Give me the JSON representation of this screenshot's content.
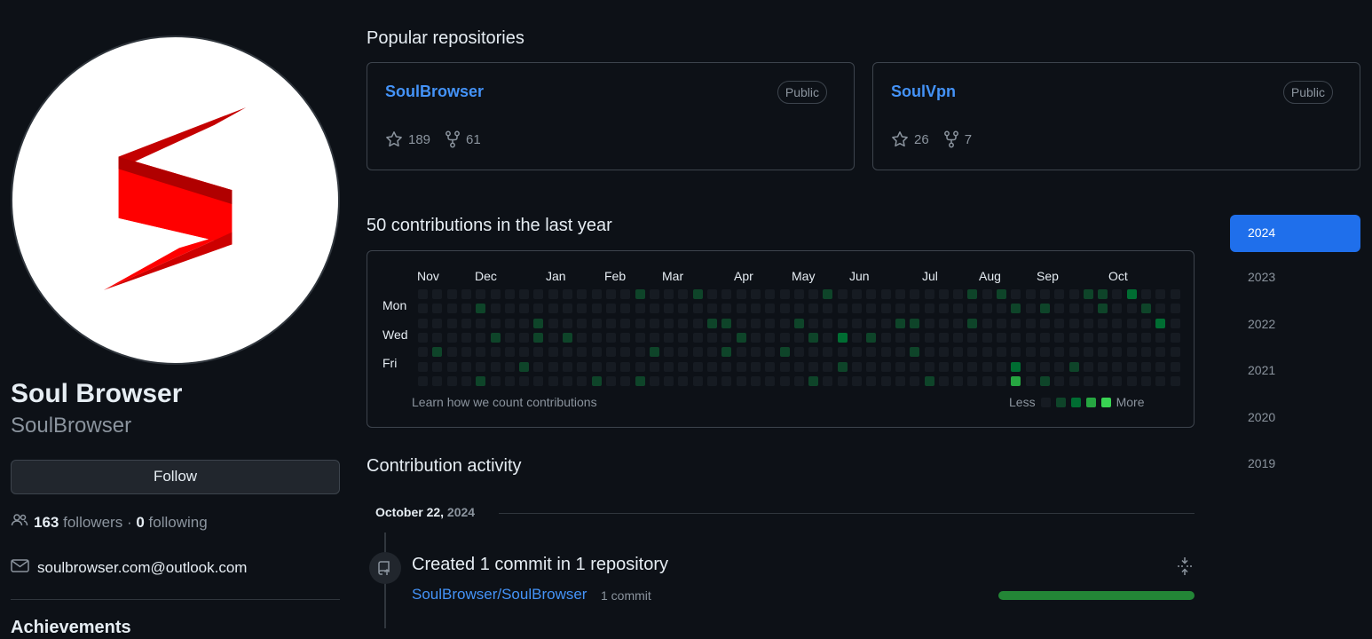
{
  "profile": {
    "display_name": "Soul Browser",
    "username": "SoulBrowser",
    "follow_label": "Follow",
    "followers_count": "163",
    "followers_label": "followers",
    "separator": "·",
    "following_count": "0",
    "following_label": "following",
    "email": "soulbrowser.com@outlook.com",
    "achievements_label": "Achievements",
    "logo_color": "#ff0000"
  },
  "popular": {
    "title": "Popular repositories",
    "repos": [
      {
        "name": "SoulBrowser",
        "visibility": "Public",
        "stars": "189",
        "forks": "61"
      },
      {
        "name": "SoulVpn",
        "visibility": "Public",
        "stars": "26",
        "forks": "7"
      }
    ]
  },
  "contributions": {
    "title": "50 contributions in the last year",
    "months": [
      "Nov",
      "Dec",
      "Jan",
      "Feb",
      "Mar",
      "Apr",
      "May",
      "Jun",
      "Jul",
      "Aug",
      "Sep",
      "Oct"
    ],
    "day_labels": [
      "Mon",
      "Wed",
      "Fri"
    ],
    "learn_link": "Learn how we count contributions",
    "legend_less": "Less",
    "legend_more": "More",
    "level_colors": [
      "#161b22",
      "#0e4429",
      "#006d32",
      "#26a641",
      "#39d353"
    ],
    "active_cells": [
      [
        1,
        4,
        1
      ],
      [
        4,
        1,
        1
      ],
      [
        4,
        6,
        1
      ],
      [
        5,
        3,
        1
      ],
      [
        7,
        5,
        1
      ],
      [
        8,
        2,
        1
      ],
      [
        8,
        3,
        1
      ],
      [
        10,
        3,
        1
      ],
      [
        12,
        6,
        1
      ],
      [
        15,
        0,
        1
      ],
      [
        15,
        6,
        1
      ],
      [
        16,
        4,
        1
      ],
      [
        19,
        0,
        1
      ],
      [
        20,
        2,
        1
      ],
      [
        21,
        2,
        1
      ],
      [
        21,
        4,
        1
      ],
      [
        22,
        3,
        1
      ],
      [
        25,
        4,
        1
      ],
      [
        26,
        2,
        1
      ],
      [
        27,
        3,
        1
      ],
      [
        27,
        6,
        1
      ],
      [
        28,
        0,
        1
      ],
      [
        29,
        3,
        2
      ],
      [
        29,
        5,
        1
      ],
      [
        31,
        3,
        1
      ],
      [
        33,
        2,
        1
      ],
      [
        34,
        2,
        1
      ],
      [
        34,
        4,
        1
      ],
      [
        35,
        6,
        1
      ],
      [
        38,
        0,
        1
      ],
      [
        38,
        2,
        1
      ],
      [
        40,
        0,
        1
      ],
      [
        41,
        1,
        1
      ],
      [
        41,
        5,
        2
      ],
      [
        41,
        6,
        3
      ],
      [
        43,
        1,
        1
      ],
      [
        43,
        6,
        1
      ],
      [
        45,
        5,
        1
      ],
      [
        46,
        0,
        1
      ],
      [
        47,
        0,
        1
      ],
      [
        47,
        1,
        1
      ],
      [
        49,
        0,
        2
      ],
      [
        50,
        1,
        1
      ],
      [
        51,
        2,
        2
      ]
    ]
  },
  "years": [
    "2024",
    "2023",
    "2022",
    "2021",
    "2020",
    "2019"
  ],
  "activity": {
    "title": "Contribution activity",
    "date_label": "October 22,",
    "date_year": "2024",
    "headline": "Created 1 commit in 1 repository",
    "repo": "SoulBrowser/SoulBrowser",
    "commit_count": "1 commit",
    "bar_fraction": 1.0,
    "bar_color": "#238636"
  }
}
